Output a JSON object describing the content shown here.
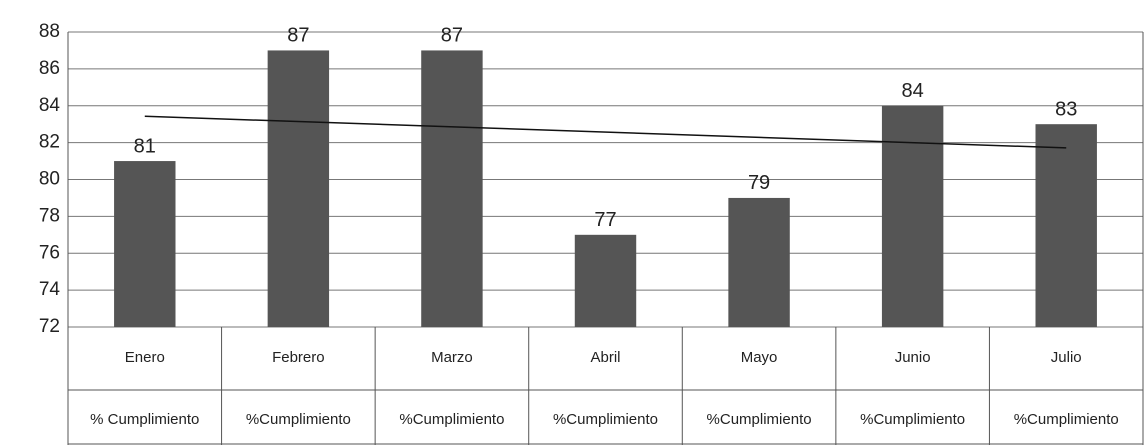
{
  "chart_data": {
    "type": "bar",
    "categories": [
      "Enero",
      "Febrero",
      "Marzo",
      "Abril",
      "Mayo",
      "Junio",
      "Julio"
    ],
    "sublabels": [
      "% Cumplimiento",
      "%Cumplimiento",
      "%Cumplimiento",
      "%Cumplimiento",
      "%Cumplimiento",
      "%Cumplimiento",
      "%Cumplimiento"
    ],
    "values": [
      81,
      87,
      87,
      77,
      79,
      84,
      83
    ],
    "color": "#555555",
    "ylim": [
      72,
      88
    ],
    "yticks": [
      72,
      74,
      76,
      78,
      80,
      82,
      84,
      86,
      88
    ],
    "grid": true,
    "trendline": "linear"
  }
}
